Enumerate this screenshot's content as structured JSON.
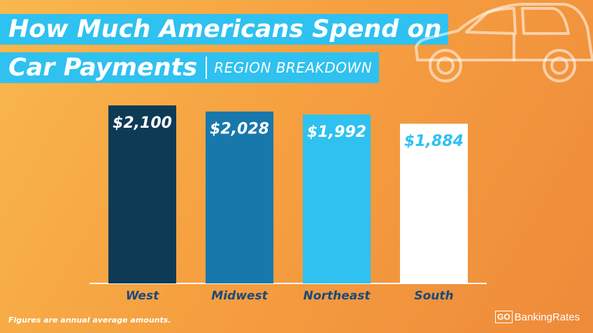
{
  "header": {
    "title_line1": "How Much Americans Spend on",
    "title_line2": "Car Payments",
    "subtitle": "REGION BREAKDOWN"
  },
  "footnote": "Figures are annual average amounts.",
  "logo": {
    "go": "GO",
    "text": "BankingRates"
  },
  "chart_data": {
    "type": "bar",
    "title": "How Much Americans Spend on Car Payments | REGION BREAKDOWN",
    "categories": [
      "West",
      "Midwest",
      "Northeast",
      "South"
    ],
    "values": [
      2100,
      2028,
      1992,
      1884
    ],
    "value_labels": [
      "$2,100",
      "$2,028",
      "$1,992",
      "$1,884"
    ],
    "bar_colors": [
      "#0e3a56",
      "#1878ab",
      "#2fc1f0",
      "#ffffff"
    ],
    "label_colors": [
      "#ffffff",
      "#ffffff",
      "#ffffff",
      "#2fc1f0"
    ],
    "axis_label_color": "#1a4a7a",
    "grid": false,
    "legend": "none"
  }
}
